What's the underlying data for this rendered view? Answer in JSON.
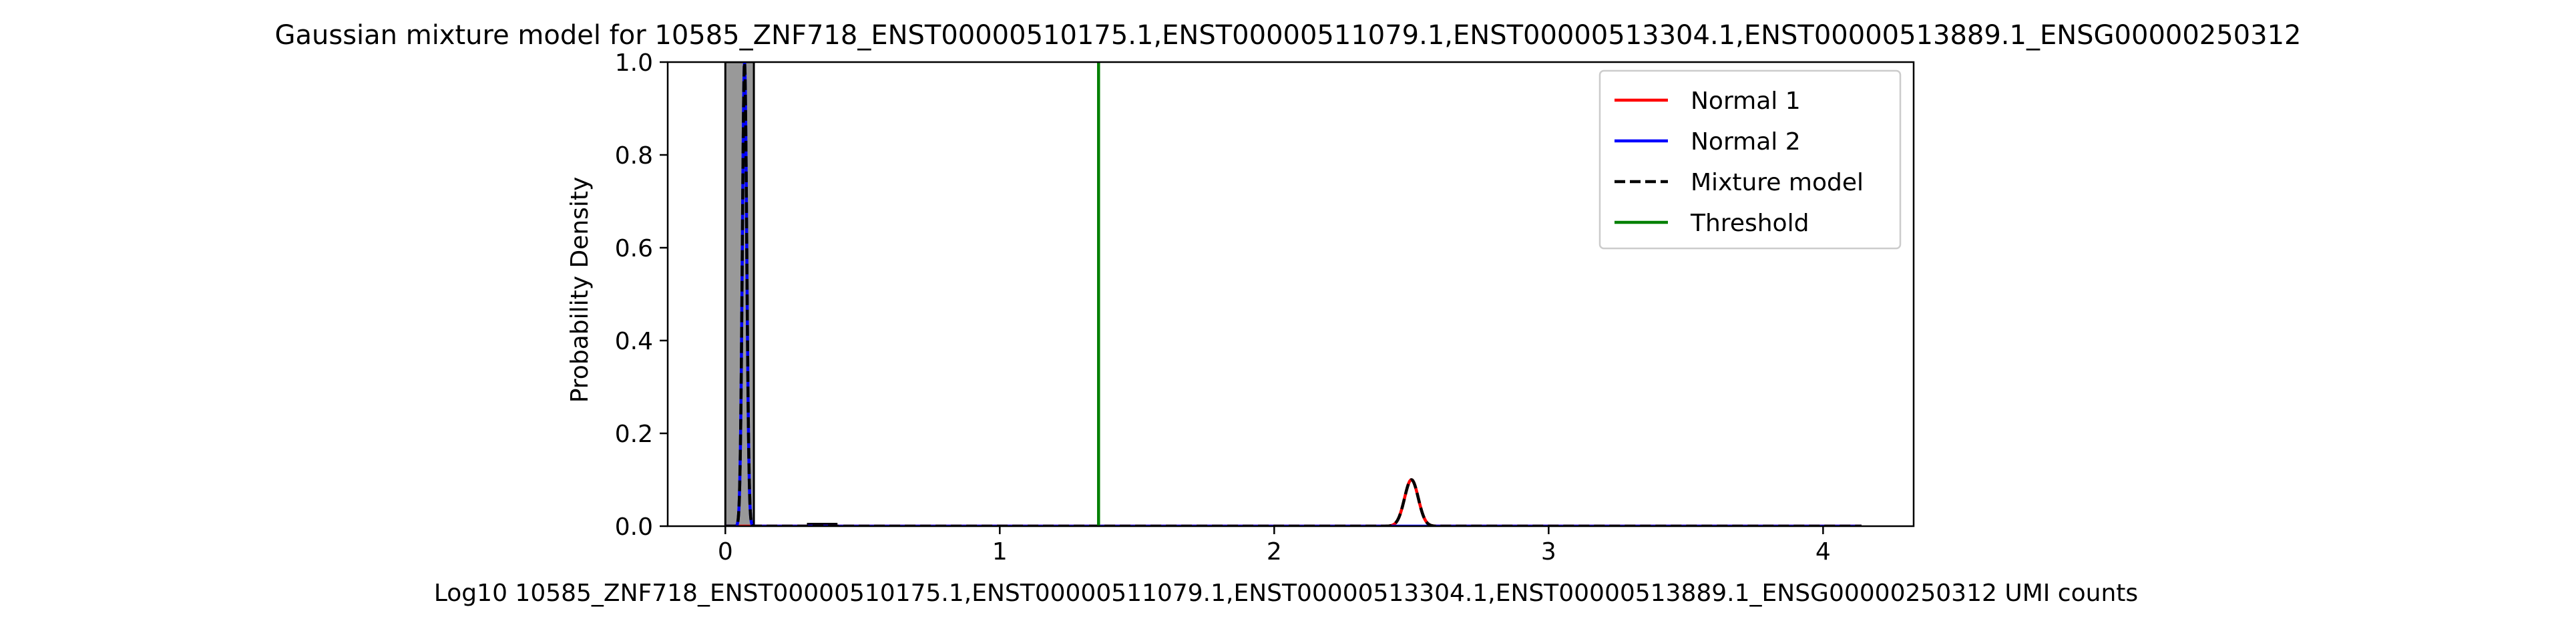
{
  "chart_data": {
    "type": "histogram-with-density",
    "title": "Gaussian mixture model for 10585_ZNF718_ENST00000510175.1,ENST00000511079.1,ENST00000513304.1,ENST00000513889.1_ENSG00000250312",
    "xlabel": "Log10 10585_ZNF718_ENST00000510175.1,ENST00000511079.1,ENST00000513304.1,ENST00000513889.1_ENSG00000250312 UMI counts",
    "ylabel": "Probability Density",
    "xlim": [
      -0.21,
      4.33
    ],
    "ylim": [
      0,
      1.0
    ],
    "xticks": [
      0,
      1,
      2,
      3,
      4
    ],
    "xtick_labels": [
      "0",
      "1",
      "2",
      "3",
      "4"
    ],
    "yticks": [
      0,
      0.2,
      0.4,
      0.6,
      0.8,
      1.0
    ],
    "ytick_labels": [
      "0.0",
      "0.2",
      "0.4",
      "0.6",
      "0.8",
      "1.0"
    ],
    "histogram": {
      "bins": [
        {
          "x0": 0.0,
          "x1": 0.104,
          "density": 1.0
        },
        {
          "x0": 0.301,
          "x1": 0.405,
          "density": 0.005
        }
      ],
      "color": "#999999"
    },
    "series": [
      {
        "name": "Normal 1",
        "color": "#ff0000",
        "style": "solid",
        "components": [
          {
            "mean": 2.5,
            "sd": 0.025,
            "peak": 0.1
          }
        ]
      },
      {
        "name": "Normal 2",
        "color": "#0000ff",
        "style": "solid",
        "components": [
          {
            "mean": 0.07,
            "sd": 0.008,
            "peak": 1.0
          }
        ]
      },
      {
        "name": "Mixture model",
        "color": "#000000",
        "style": "dashed",
        "components": [
          {
            "mean": 0.07,
            "sd": 0.008,
            "peak": 1.0
          },
          {
            "mean": 2.5,
            "sd": 0.025,
            "peak": 0.1
          }
        ]
      }
    ],
    "threshold": {
      "name": "Threshold",
      "x": 1.36,
      "color": "#008000"
    },
    "curve_range": [
      0.0,
      4.14
    ],
    "legend_position": "upper right",
    "grid": false
  }
}
